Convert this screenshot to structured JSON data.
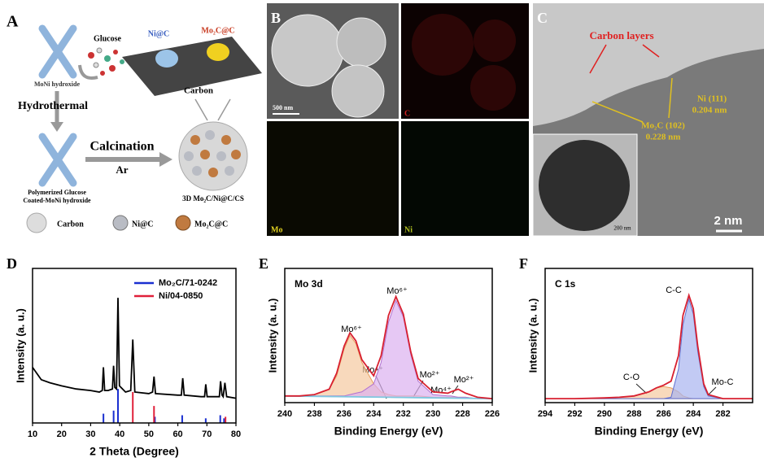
{
  "panels": {
    "a": {
      "label": "A",
      "glucose": "Glucose",
      "precursor": "MoNi hydroxide",
      "ni_c": "Ni@C",
      "mo2c_c": "Mo₂C@C",
      "carbon_sheet": "Carbon",
      "step1": "Hydrothermal",
      "step2": "Calcination",
      "atmosphere": "Ar",
      "intermediate": [
        "Polymerized Glucose",
        "Coated-MoNi hydroxide"
      ],
      "product": "3D Mo₂C/Ni@C/CS",
      "legend": [
        "Carbon",
        "Ni@C",
        "Mo₂C@C"
      ]
    },
    "b": {
      "label": "B",
      "scale_bar": "500 nm",
      "maps": [
        "C",
        "Mo",
        "Ni"
      ]
    },
    "c": {
      "label": "C",
      "carbon_layers": "Carbon layers",
      "ni_plane": "Ni (111)",
      "ni_spacing": "0.204 nm",
      "mo2c_plane": "Mo₂C (102)",
      "mo2c_spacing": "0.228 nm",
      "scale_bar": "2 nm",
      "inset_scale_bar": "200 nm"
    }
  },
  "chart_data": [
    {
      "type": "line",
      "label": "D",
      "xlabel": "2 Theta (Degree)",
      "ylabel": "Intensity (a. u.)",
      "xlim": [
        10,
        80
      ],
      "xticks": [
        10,
        20,
        30,
        40,
        50,
        60,
        70,
        80
      ],
      "ylim": [
        0,
        100
      ],
      "legend": "upper right",
      "series": [
        {
          "color": "#000000",
          "x": [
            10,
            13,
            16,
            20,
            25,
            30,
            33,
            34,
            34.4,
            34.8,
            36,
            37.5,
            37.9,
            38.3,
            38.9,
            39.4,
            39.9,
            42,
            43.8,
            44.5,
            45.2,
            50,
            51.3,
            51.8,
            52.3,
            60,
            61.2,
            61.7,
            62.2,
            68,
            69.2,
            69.6,
            70.1,
            73,
            74.3,
            74.7,
            75.2,
            75.6,
            76.2,
            76.8,
            80
          ],
          "values": [
            36,
            28,
            26,
            24,
            22,
            21,
            20,
            21,
            36,
            21,
            21,
            22,
            37,
            23,
            22,
            81,
            24,
            20,
            21,
            54,
            20,
            19,
            20,
            30,
            19,
            18,
            18,
            29,
            18,
            17,
            17,
            25,
            17,
            17,
            17,
            27,
            18,
            17,
            26,
            17,
            16
          ]
        },
        {
          "name": "Mo₂C/71-0242",
          "color": "#1a2fd0",
          "style": "stem",
          "x": [
            34.4,
            37.9,
            39.4,
            52.1,
            61.5,
            69.6,
            74.6,
            75.9
          ],
          "values": [
            6,
            8,
            22,
            4,
            5,
            3,
            5,
            3
          ]
        },
        {
          "name": "Ni/04-0850",
          "color": "#e0203a",
          "style": "stem",
          "x": [
            44.5,
            51.8,
            76.4
          ],
          "values": [
            20,
            11,
            4
          ]
        }
      ]
    },
    {
      "type": "line",
      "label": "E",
      "title": "Mo 3d",
      "xlabel": "Binding Energy (eV)",
      "ylabel": "Intensity (a. u.)",
      "xlim": [
        240,
        226
      ],
      "xticks": [
        240,
        238,
        236,
        234,
        232,
        230,
        228,
        226
      ],
      "ylim": [
        0,
        100
      ],
      "series": [
        {
          "color": "#e8a060",
          "fill": "#f5c9a0",
          "x": [
            240,
            239,
            238,
            237,
            236.5,
            236,
            235.6,
            235.2,
            234.8,
            234,
            233.5,
            233,
            232.5,
            232,
            231.5,
            231,
            230,
            229,
            228.8,
            228.3,
            227.8,
            227,
            226
          ],
          "values": [
            5,
            5,
            6,
            10,
            20,
            40,
            50,
            44,
            30,
            14,
            8,
            6,
            5,
            5,
            5,
            5,
            4,
            4,
            4,
            4,
            4,
            3,
            3
          ]
        },
        {
          "color": "#b070d0",
          "fill": "#dcb0f0",
          "x": [
            240,
            239,
            238,
            237,
            236.5,
            236,
            235.6,
            235.2,
            234.8,
            234,
            233.5,
            233,
            232.5,
            232,
            231.5,
            231,
            230,
            229,
            228.8,
            228.3,
            227.8,
            227,
            226
          ],
          "values": [
            5,
            5,
            5,
            5,
            5,
            5,
            6,
            7,
            8,
            14,
            30,
            60,
            76,
            64,
            36,
            16,
            6,
            5,
            5,
            4,
            4,
            3,
            3
          ]
        },
        {
          "color": "#7fc8e0",
          "x": [
            240,
            233,
            226
          ],
          "values": [
            5,
            4,
            3
          ]
        },
        {
          "color": "#d82030",
          "x": [
            240,
            239,
            238,
            237,
            236.5,
            236,
            235.6,
            235.2,
            234.8,
            234,
            233.5,
            233,
            232.5,
            232,
            231.5,
            231,
            230,
            229,
            228.8,
            228.3,
            227.8,
            227,
            226
          ],
          "values": [
            5,
            5,
            6,
            10,
            22,
            42,
            52,
            46,
            32,
            20,
            35,
            65,
            79,
            66,
            38,
            18,
            8,
            7,
            8,
            10,
            7,
            4,
            3
          ]
        }
      ],
      "annotations": [
        "Mo⁶⁺",
        "Mo⁶⁺",
        "Mo⁴⁺",
        "Mo²⁺",
        "Mo⁴⁺",
        "Mo²⁺"
      ]
    },
    {
      "type": "line",
      "label": "F",
      "title": "C 1s",
      "xlabel": "Binding Energy (eV)",
      "ylabel": "Intensity (a. u.)",
      "xlim": [
        294,
        280
      ],
      "xticks": [
        294,
        292,
        290,
        288,
        286,
        284,
        282
      ],
      "ylim": [
        0,
        100
      ],
      "series": [
        {
          "color": "#e8a060",
          "fill": "#f5c9a0",
          "x": [
            294,
            292,
            290,
            289,
            288,
            287,
            286.5,
            286,
            285.5,
            285,
            284.7,
            284.3,
            284,
            283.7,
            283.3,
            283,
            282,
            281,
            280
          ],
          "values": [
            3,
            3,
            3.5,
            4,
            5,
            8,
            11,
            12,
            11,
            8,
            5,
            3.5,
            3,
            3,
            3,
            3,
            3,
            3,
            3
          ]
        },
        {
          "color": "#6070d0",
          "fill": "#a8b4f0",
          "x": [
            294,
            292,
            290,
            289,
            288,
            287,
            286.5,
            286,
            285.5,
            285,
            284.7,
            284.3,
            284,
            283.7,
            283.3,
            283,
            282,
            281,
            280
          ],
          "values": [
            3,
            3,
            3,
            3,
            3,
            3,
            3,
            3,
            4,
            25,
            58,
            77,
            66,
            38,
            12,
            5,
            3,
            3,
            3
          ]
        },
        {
          "color": "#d82030",
          "x": [
            294,
            292,
            290,
            289,
            288,
            287,
            286.5,
            286,
            285.5,
            285,
            284.7,
            284.3,
            284,
            283.7,
            283.3,
            283,
            282,
            281,
            280
          ],
          "values": [
            3,
            3,
            3.5,
            4,
            5,
            8,
            11,
            13,
            16,
            35,
            65,
            80,
            70,
            42,
            14,
            6,
            3,
            3,
            3
          ]
        }
      ],
      "annotations": [
        "C-C",
        "C-O",
        "Mo-C"
      ]
    }
  ]
}
